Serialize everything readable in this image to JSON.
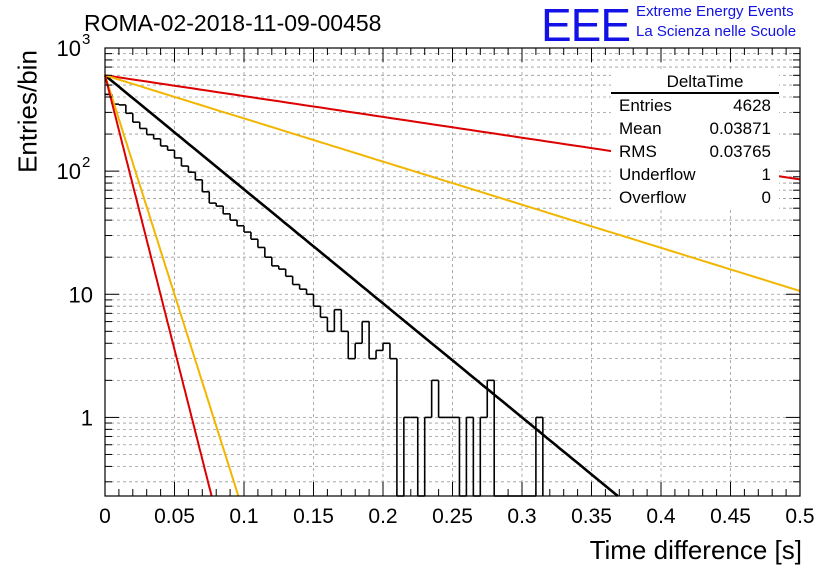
{
  "page": {
    "title": "ROMA-02-2018-11-09-00458",
    "logo": {
      "text": "EEE",
      "line1": "Extreme Energy Events",
      "line2": "La Scienza nelle Scuole"
    }
  },
  "stats": {
    "title": "DeltaTime",
    "rows": [
      {
        "label": "Entries",
        "value": "4628"
      },
      {
        "label": "Mean",
        "value": "0.03871"
      },
      {
        "label": "RMS",
        "value": "0.03765"
      },
      {
        "label": "Underflow",
        "value": "1"
      },
      {
        "label": "Overflow",
        "value": "0"
      }
    ]
  },
  "chart_data": {
    "type": "line",
    "title": "ROMA-02-2018-11-09-00458",
    "xlabel": "Time difference [s]",
    "ylabel": "Entries/bin",
    "xlim": [
      0,
      0.5
    ],
    "ylim": [
      0.23,
      1000
    ],
    "yscale": "log",
    "grid": true,
    "x_ticks": [
      "0",
      "0.05",
      "0.1",
      "0.15",
      "0.2",
      "0.25",
      "0.3",
      "0.35",
      "0.4",
      "0.45",
      "0.5"
    ],
    "y_ticks": [
      {
        "value": 1,
        "label": "1"
      },
      {
        "value": 10,
        "label": "10"
      },
      {
        "value": 100,
        "label": "10",
        "exp": "2"
      },
      {
        "value": 1000,
        "label": "10",
        "exp": "3"
      }
    ],
    "legend": "top-right stats box",
    "histogram": {
      "bin_width": 0.005,
      "color": "#000000",
      "values": [
        420,
        350,
        345,
        295,
        250,
        222,
        198,
        183,
        160,
        148,
        128,
        110,
        98,
        85,
        68,
        55,
        52,
        45,
        40,
        36,
        32,
        28,
        24,
        20,
        17,
        16,
        14,
        12,
        11,
        10,
        8,
        6.5,
        5,
        7.5,
        5,
        3,
        4,
        6,
        3,
        3.5,
        4,
        3,
        0,
        1,
        1,
        0,
        1,
        2,
        1,
        1,
        1,
        0,
        1,
        0,
        1,
        2,
        0,
        0,
        0,
        0,
        0,
        0,
        1
      ]
    },
    "fits": [
      {
        "color": "#000000",
        "y0": 600,
        "tau": 0.0469
      },
      {
        "color": "#dd0000",
        "y0": 600,
        "tau": 0.257
      },
      {
        "color": "#f2b600",
        "y0": 600,
        "tau": 0.124
      },
      {
        "color": "#f2b600",
        "y0": 600,
        "tau": 0.0122
      },
      {
        "color": "#dd0000",
        "y0": 600,
        "tau": 0.00975
      }
    ]
  }
}
